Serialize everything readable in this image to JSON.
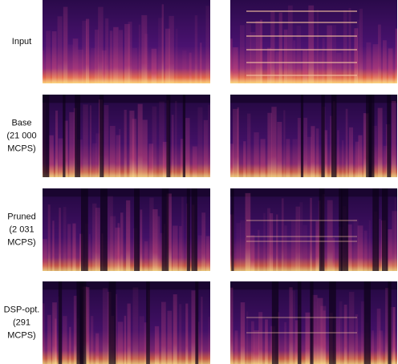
{
  "rows": [
    {
      "label": [
        "Input"
      ]
    },
    {
      "label": [
        "Base",
        "(21 000",
        "MCPS)"
      ]
    },
    {
      "label": [
        "Pruned",
        "(2 031",
        "MCPS)"
      ]
    },
    {
      "label": [
        "DSP-opt.",
        "(291",
        "MCPS)"
      ]
    }
  ]
}
